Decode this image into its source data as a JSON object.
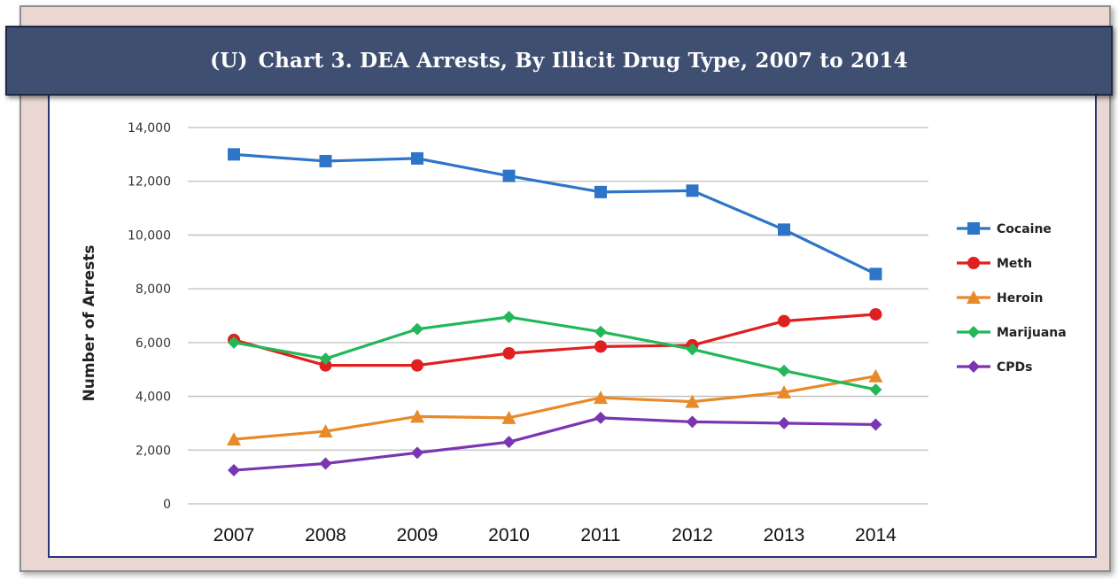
{
  "chart_title": {
    "marking": "(U)",
    "text": "Chart 3. DEA Arrests, By Illicit Drug Type, 2007 to 2014"
  },
  "chart_data": {
    "type": "line",
    "title": "(U) Chart 3. DEA Arrests, By Illicit Drug Type, 2007 to 2014",
    "xlabel": "",
    "ylabel": "Number of Arrests",
    "categories": [
      "2007",
      "2008",
      "2009",
      "2010",
      "2011",
      "2012",
      "2013",
      "2014"
    ],
    "ylim": [
      0,
      14000
    ],
    "y_ticks": [
      "0",
      "2,000",
      "4,000",
      "6,000",
      "8,000",
      "10,000",
      "12,000",
      "14,000"
    ],
    "grid": true,
    "legend_position": "right",
    "series": [
      {
        "name": "Cocaine",
        "color": "#2e75c8",
        "marker": "square",
        "values": [
          13000,
          12750,
          12850,
          12200,
          11600,
          11650,
          10200,
          8550
        ]
      },
      {
        "name": "Meth",
        "color": "#e02020",
        "marker": "circle",
        "values": [
          6100,
          5150,
          5150,
          5600,
          5850,
          5900,
          6800,
          7050
        ]
      },
      {
        "name": "Heroin",
        "color": "#e88a2a",
        "marker": "triangle",
        "values": [
          2400,
          2700,
          3250,
          3200,
          3950,
          3800,
          4150,
          4750
        ]
      },
      {
        "name": "Marijuana",
        "color": "#22b85a",
        "marker": "diamond",
        "values": [
          6000,
          5400,
          6500,
          6950,
          6400,
          5750,
          4950,
          4250
        ]
      },
      {
        "name": "CPDs",
        "color": "#7a36b0",
        "marker": "diamond",
        "values": [
          1250,
          1500,
          1900,
          2300,
          3200,
          3050,
          3000,
          2950
        ]
      }
    ]
  }
}
